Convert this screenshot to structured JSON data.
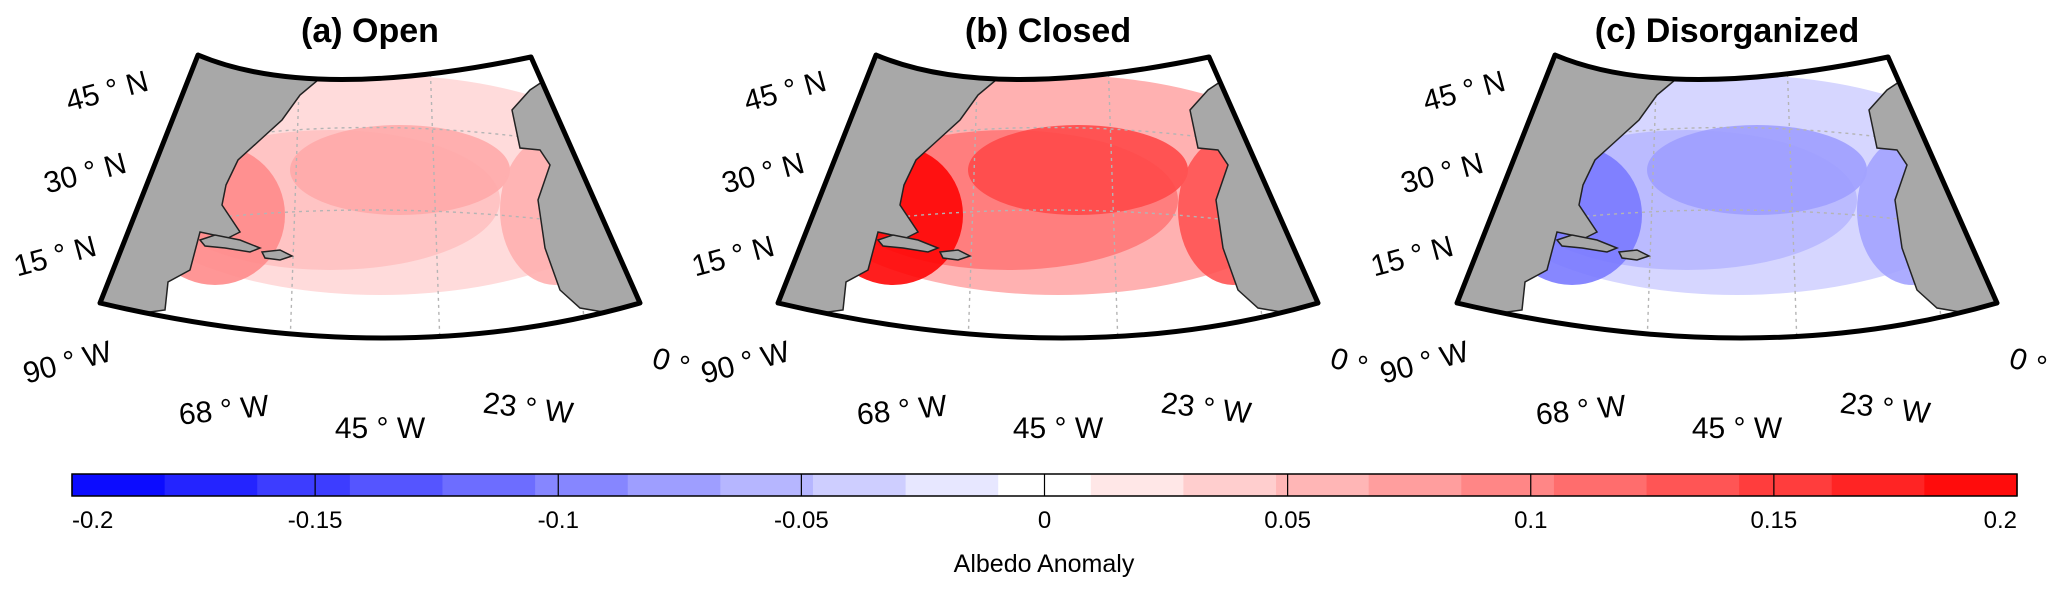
{
  "panels": [
    {
      "title": "(a) Open",
      "lat_labels": [
        "45 ° N",
        "30 ° N",
        "15 ° N"
      ],
      "lon_labels": [
        "90 ° W",
        "68 ° W",
        "45 ° W",
        "23 ° W",
        "0 °"
      ],
      "anomaly_sign": "positive",
      "anomaly_intensity": 0.35
    },
    {
      "title": "(b) Closed",
      "lat_labels": [
        "45 ° N",
        "30 ° N",
        "15 ° N"
      ],
      "lon_labels": [
        "90 ° W",
        "68 ° W",
        "45 ° W",
        "23 ° W",
        "0 °"
      ],
      "anomaly_sign": "positive",
      "anomaly_intensity": 0.75
    },
    {
      "title": "(c) Disorganized",
      "lat_labels": [
        "45 ° N",
        "30 ° N",
        "15 ° N"
      ],
      "lon_labels": [
        "90 ° W",
        "68 ° W",
        "45 ° W",
        "23 ° W",
        "0 °"
      ],
      "anomaly_sign": "negative",
      "anomaly_intensity": 0.4
    }
  ],
  "colorbar": {
    "label": "Albedo Anomaly",
    "ticks": [
      "-0.2",
      "-0.15",
      "-0.1",
      "-0.05",
      "0",
      "0.05",
      "0.1",
      "0.15",
      "0.2"
    ],
    "min": -0.2,
    "max": 0.2,
    "levels": 21,
    "negative_color": "#0000ff",
    "positive_color": "#ff0000",
    "zero_color": "#ffffff"
  },
  "colors": {
    "land": "#a8a8a8",
    "frame": "#000000",
    "graticule": "#b4b4b4"
  }
}
